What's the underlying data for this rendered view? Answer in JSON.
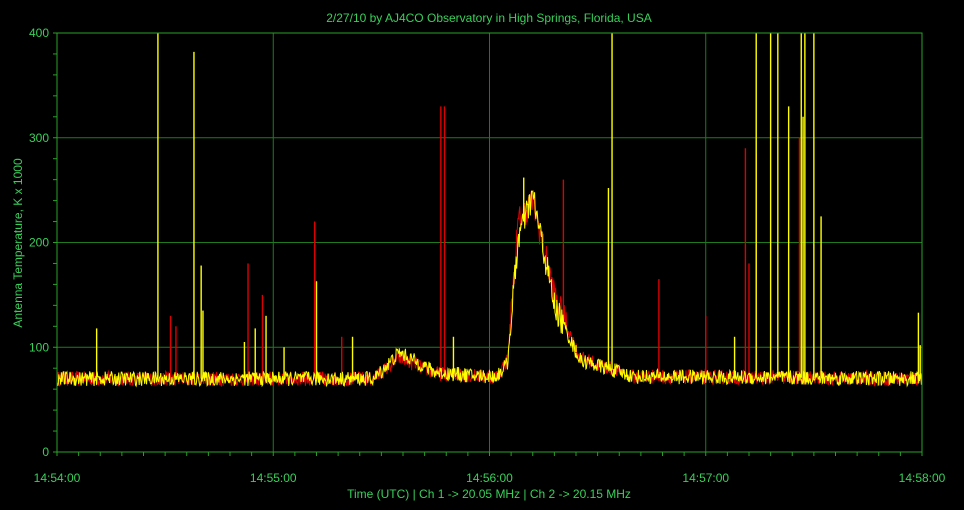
{
  "chart_data": {
    "type": "line",
    "title": "2/27/10  by  AJ4CO Observatory  in  High Springs, Florida, USA",
    "xlabel": "Time (UTC)  |  Ch 1 -> 20.05 MHz  |  Ch 2 -> 20.15 MHz",
    "ylabel": "Antenna Temperature, K x 1000",
    "ylim": [
      0,
      400
    ],
    "yticks": [
      "0",
      "100",
      "200",
      "300",
      "400"
    ],
    "xticks": [
      "14:54:00",
      "14:55:00",
      "14:56:00",
      "14:57:00",
      "14:58:00"
    ],
    "xlim_seconds_after_14_54": [
      0,
      240
    ],
    "grid": true,
    "colors": {
      "background": "#000000",
      "grid": "#1f7a1f",
      "text": "#39d05a",
      "ch1": "#dd0000",
      "ch2": "#ffff00"
    },
    "series": [
      {
        "name": "Ch 1",
        "color": "#dd0000",
        "baseline_profile": {
          "t": [
            0,
            80,
            88,
            95,
            105,
            115,
            122,
            125,
            128,
            132,
            138,
            145,
            160,
            240
          ],
          "y": [
            70,
            70,
            70,
            90,
            75,
            73,
            72,
            88,
            220,
            240,
            150,
            90,
            72,
            70
          ]
        },
        "spikes": [
          {
            "t": 31.5,
            "y": 130
          },
          {
            "t": 33,
            "y": 120
          },
          {
            "t": 53,
            "y": 180
          },
          {
            "t": 57,
            "y": 150
          },
          {
            "t": 71.5,
            "y": 220
          },
          {
            "t": 79,
            "y": 110
          },
          {
            "t": 106.5,
            "y": 330
          },
          {
            "t": 107.5,
            "y": 330
          },
          {
            "t": 140.5,
            "y": 260
          },
          {
            "t": 167,
            "y": 165
          },
          {
            "t": 180,
            "y": 130
          },
          {
            "t": 191,
            "y": 290
          },
          {
            "t": 192,
            "y": 180
          },
          {
            "t": 194,
            "y": 285
          },
          {
            "t": 206,
            "y": 300
          }
        ]
      },
      {
        "name": "Ch 2",
        "color": "#ffff00",
        "baseline_profile": {
          "t": [
            0,
            80,
            88,
            95,
            105,
            115,
            122,
            125,
            128,
            132,
            138,
            145,
            160,
            240
          ],
          "y": [
            70,
            70,
            70,
            95,
            76,
            73,
            72,
            85,
            205,
            245,
            140,
            88,
            72,
            70
          ]
        },
        "spikes": [
          {
            "t": 11,
            "y": 118
          },
          {
            "t": 28,
            "y": 400
          },
          {
            "t": 38,
            "y": 382
          },
          {
            "t": 40,
            "y": 178
          },
          {
            "t": 40.5,
            "y": 135
          },
          {
            "t": 52,
            "y": 105
          },
          {
            "t": 55,
            "y": 118
          },
          {
            "t": 58,
            "y": 130
          },
          {
            "t": 63,
            "y": 100
          },
          {
            "t": 72,
            "y": 163
          },
          {
            "t": 82,
            "y": 110
          },
          {
            "t": 110,
            "y": 110
          },
          {
            "t": 129.5,
            "y": 262
          },
          {
            "t": 144,
            "y": 102
          },
          {
            "t": 153,
            "y": 252
          },
          {
            "t": 154,
            "y": 400
          },
          {
            "t": 188,
            "y": 110
          },
          {
            "t": 194,
            "y": 400
          },
          {
            "t": 198,
            "y": 400
          },
          {
            "t": 200,
            "y": 400
          },
          {
            "t": 203,
            "y": 330
          },
          {
            "t": 206.5,
            "y": 400
          },
          {
            "t": 207.5,
            "y": 400
          },
          {
            "t": 207,
            "y": 320
          },
          {
            "t": 210,
            "y": 400
          },
          {
            "t": 212,
            "y": 225
          },
          {
            "t": 239,
            "y": 133
          },
          {
            "t": 239.5,
            "y": 102
          }
        ]
      }
    ]
  }
}
